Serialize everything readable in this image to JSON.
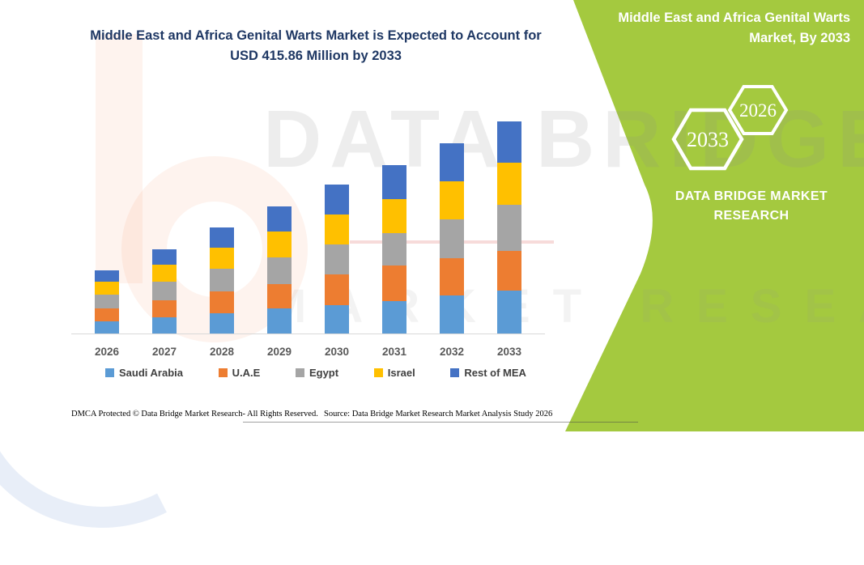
{
  "title": {
    "text": "Middle East and Africa Genital Warts Market is Expected to Account for USD 415.86 Million by 2033"
  },
  "right_panel": {
    "title": "Middle East and Africa Genital Warts Market, By 2033",
    "hexagon_back_label": "2033",
    "hexagon_front_label": "2026",
    "brand_line1": "DATA BRIDGE MARKET",
    "brand_line2": "RESEARCH",
    "background_color": "#A4C93F"
  },
  "watermark": {
    "line1": "DATA BRIDGE",
    "line2": "MARKET RESEARCH"
  },
  "chart_data": {
    "type": "bar",
    "stacked": true,
    "title": "Middle East and Africa Genital Warts Market is Expected to Account for USD 415.86 Million by 2033",
    "unit": "USD Million",
    "categories": [
      "2026",
      "2027",
      "2028",
      "2029",
      "2030",
      "2031",
      "2032",
      "2033"
    ],
    "series": [
      {
        "name": "Saudi Arabia",
        "color": "#5B9BD5",
        "values": [
          24.0,
          31.5,
          40.2,
          48.6,
          56.2,
          64.1,
          74.9,
          84.3
        ]
      },
      {
        "name": "U.A.E",
        "color": "#ED7D31",
        "values": [
          25.6,
          34.2,
          42.4,
          48.8,
          59.2,
          69.5,
          72.8,
          78.4
        ]
      },
      {
        "name": "Egypt",
        "color": "#A5A5A5",
        "values": [
          26.7,
          36.0,
          44.3,
          52.0,
          59.8,
          63.2,
          76.5,
          89.6
        ]
      },
      {
        "name": "Israel",
        "color": "#FFC000",
        "values": [
          25.1,
          33.0,
          41.8,
          51.3,
          58.0,
          67.4,
          75.0,
          82.8
        ]
      },
      {
        "name": "Rest of MEA",
        "color": "#4472C4",
        "values": [
          22.9,
          31.3,
          39.3,
          49.3,
          58.6,
          65.8,
          73.8,
          80.8
        ]
      }
    ],
    "stack_totals_estimated": [
      124.3,
      166.0,
      208.0,
      250.0,
      291.8,
      330.0,
      373.0,
      415.9
    ],
    "highlight_value": "USD 415.86 Million",
    "highlight_year": "2033",
    "ylim": [
      0,
      435
    ],
    "xlabel": "",
    "ylabel": "",
    "grid": false,
    "legend_position": "bottom",
    "axis_line_color": "#D9D9D9"
  },
  "footer": {
    "left": "DMCA Protected © Data Bridge Market Research-  All Rights Reserved.",
    "right": "Source: Data Bridge Market Research  Market Analysis Study 2026"
  }
}
